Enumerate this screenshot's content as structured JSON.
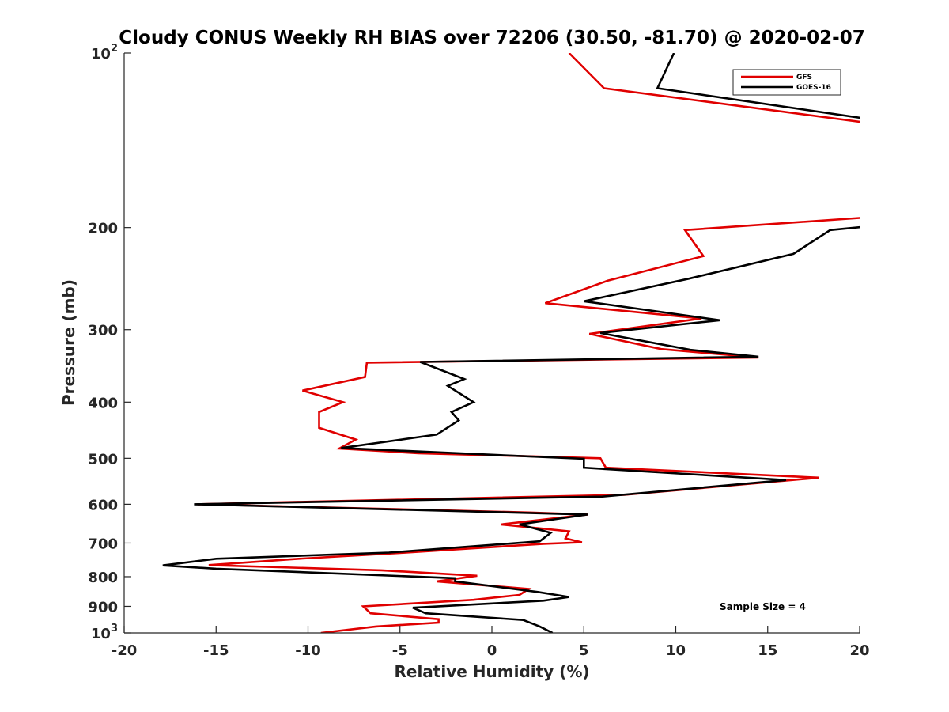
{
  "chart_data": {
    "type": "line",
    "title": "Cloudy CONUS Weekly RH BIAS over 72206 (30.50, -81.70) @ 2020-02-07",
    "xlabel": "Relative Humidity (%)",
    "ylabel": "Pressure (mb)",
    "xlim": [
      -20,
      20
    ],
    "ylim": [
      100,
      1000
    ],
    "yscale": "log",
    "y_reversed": true,
    "x_ticks": [
      {
        "value": -20,
        "label": "-20"
      },
      {
        "value": -15,
        "label": "-15"
      },
      {
        "value": -10,
        "label": "-10"
      },
      {
        "value": -5,
        "label": "-5"
      },
      {
        "value": 0,
        "label": "0"
      },
      {
        "value": 5,
        "label": "5"
      },
      {
        "value": 10,
        "label": "10"
      },
      {
        "value": 15,
        "label": "15"
      },
      {
        "value": 20,
        "label": "20"
      }
    ],
    "y_ticks": [
      {
        "value": 100,
        "base": "10",
        "sup": "2"
      },
      {
        "value": 200,
        "base": "200",
        "sup": ""
      },
      {
        "value": 300,
        "base": "300",
        "sup": ""
      },
      {
        "value": 400,
        "base": "400",
        "sup": ""
      },
      {
        "value": 500,
        "base": "500",
        "sup": ""
      },
      {
        "value": 600,
        "base": "600",
        "sup": ""
      },
      {
        "value": 700,
        "base": "700",
        "sup": ""
      },
      {
        "value": 800,
        "base": "800",
        "sup": ""
      },
      {
        "value": 900,
        "base": "900",
        "sup": ""
      },
      {
        "value": 1000,
        "base": "10",
        "sup": "3"
      }
    ],
    "legend_position": "top-right",
    "grid": false,
    "annotation": "Sample Size = 4",
    "series": [
      {
        "name": "GFS",
        "color": "#e00000",
        "points": [
          [
            4.2,
            100
          ],
          [
            6.1,
            115
          ],
          [
            20.5,
            132
          ],
          [
            20.5,
            192
          ],
          [
            10.5,
            202
          ],
          [
            11.5,
            224
          ],
          [
            6.3,
            247
          ],
          [
            2.9,
            270
          ],
          [
            11.4,
            287
          ],
          [
            5.3,
            305
          ],
          [
            9.2,
            324
          ],
          [
            14.5,
            335
          ],
          [
            -6.8,
            342
          ],
          [
            -6.9,
            362
          ],
          [
            -10.3,
            382
          ],
          [
            -8.1,
            400
          ],
          [
            -9.4,
            416
          ],
          [
            -9.4,
            443
          ],
          [
            -7.4,
            464
          ],
          [
            -8.3,
            481
          ],
          [
            -4.0,
            490
          ],
          [
            5.9,
            500
          ],
          [
            6.2,
            519
          ],
          [
            17.8,
            540
          ],
          [
            7.2,
            578
          ],
          [
            -11.0,
            595
          ],
          [
            -16.0,
            600
          ],
          [
            2.0,
            620
          ],
          [
            5.2,
            625
          ],
          [
            0.5,
            650
          ],
          [
            4.2,
            668
          ],
          [
            4.0,
            687
          ],
          [
            4.9,
            698
          ],
          [
            2.8,
            702
          ],
          [
            -5.0,
            728
          ],
          [
            -10.5,
            745
          ],
          [
            -15.4,
            764
          ],
          [
            -6.0,
            780
          ],
          [
            -0.8,
            797
          ],
          [
            -3.0,
            815
          ],
          [
            2.0,
            840
          ],
          [
            1.5,
            860
          ],
          [
            -1.0,
            877
          ],
          [
            -7.0,
            900
          ],
          [
            -6.6,
            925
          ],
          [
            -2.9,
            947
          ],
          [
            -2.9,
            960
          ],
          [
            -6.3,
            975
          ],
          [
            -9.3,
            1000
          ]
        ]
      },
      {
        "name": "GOES-16",
        "color": "#000000",
        "points": [
          [
            9.9,
            100
          ],
          [
            9.0,
            115
          ],
          [
            20.5,
            130
          ],
          [
            20.5,
            199
          ],
          [
            18.4,
            202
          ],
          [
            16.4,
            222
          ],
          [
            10.7,
            245
          ],
          [
            5.0,
            268
          ],
          [
            12.4,
            289
          ],
          [
            5.9,
            304
          ],
          [
            10.8,
            325
          ],
          [
            14.5,
            334
          ],
          [
            -3.9,
            341
          ],
          [
            -1.5,
            365
          ],
          [
            -2.4,
            375
          ],
          [
            -1.0,
            400
          ],
          [
            -2.2,
            416
          ],
          [
            -1.8,
            430
          ],
          [
            -3.0,
            455
          ],
          [
            -8.2,
            480
          ],
          [
            5.0,
            501
          ],
          [
            5.0,
            519
          ],
          [
            16.0,
            545
          ],
          [
            6.0,
            582
          ],
          [
            -16.2,
            600
          ],
          [
            5.2,
            625
          ],
          [
            1.5,
            650
          ],
          [
            3.2,
            672
          ],
          [
            2.6,
            695
          ],
          [
            -5.6,
            727
          ],
          [
            -15.0,
            745
          ],
          [
            -17.9,
            765
          ],
          [
            -15.0,
            775
          ],
          [
            -2.0,
            805
          ],
          [
            -2.0,
            815
          ],
          [
            2.5,
            850
          ],
          [
            4.2,
            867
          ],
          [
            2.8,
            880
          ],
          [
            -4.3,
            905
          ],
          [
            -3.6,
            925
          ],
          [
            1.7,
            950
          ],
          [
            2.6,
            975
          ],
          [
            3.3,
            1000
          ]
        ]
      }
    ]
  }
}
